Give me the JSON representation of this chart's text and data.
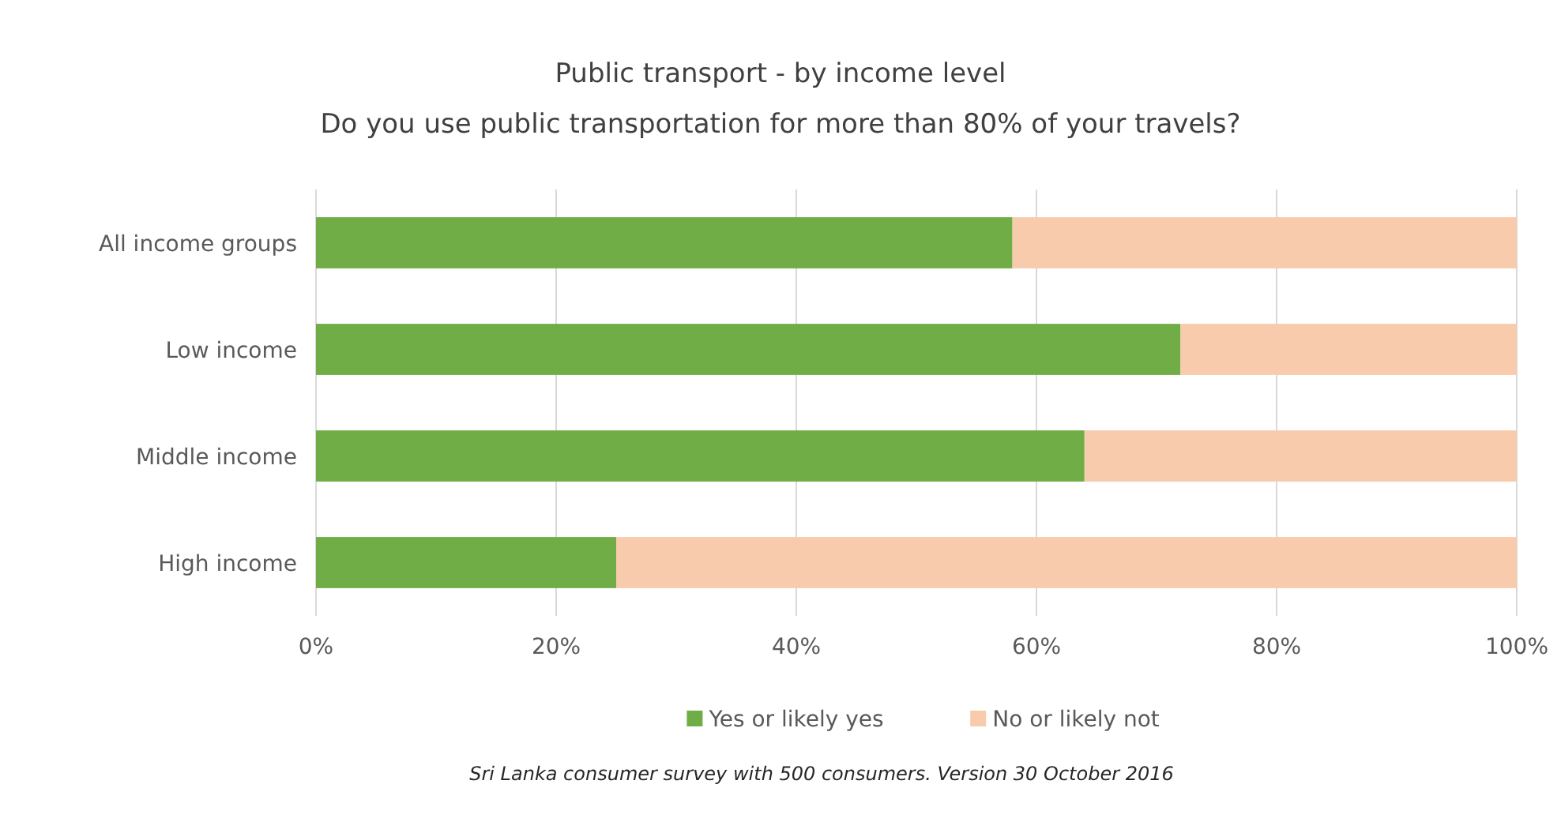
{
  "chart_data": {
    "type": "bar",
    "orientation": "horizontal",
    "stacked": true,
    "title": "Public transport - by income level",
    "subtitle": "Do you use public transportation for more than 80% of your travels?",
    "categories": [
      "All income groups",
      "Low income",
      "Middle income",
      "High income"
    ],
    "series": [
      {
        "name": "Yes or likely yes",
        "color": "#70ad47",
        "values": [
          58,
          72,
          64,
          25
        ]
      },
      {
        "name": "No or likely not",
        "color": "#f8cbad",
        "values": [
          42,
          28,
          36,
          75
        ]
      }
    ],
    "xlim": [
      0,
      100
    ],
    "xticks": [
      {
        "value": 0,
        "label": "0%"
      },
      {
        "value": 20,
        "label": "20%"
      },
      {
        "value": 40,
        "label": "40%"
      },
      {
        "value": 60,
        "label": "60%"
      },
      {
        "value": 80,
        "label": "80%"
      },
      {
        "value": 100,
        "label": "100%"
      }
    ],
    "grid": "x",
    "legend": "bottom",
    "annotations": [
      "Sri Lanka consumer survey with 500 consumers. Version  30 October 2016"
    ]
  }
}
